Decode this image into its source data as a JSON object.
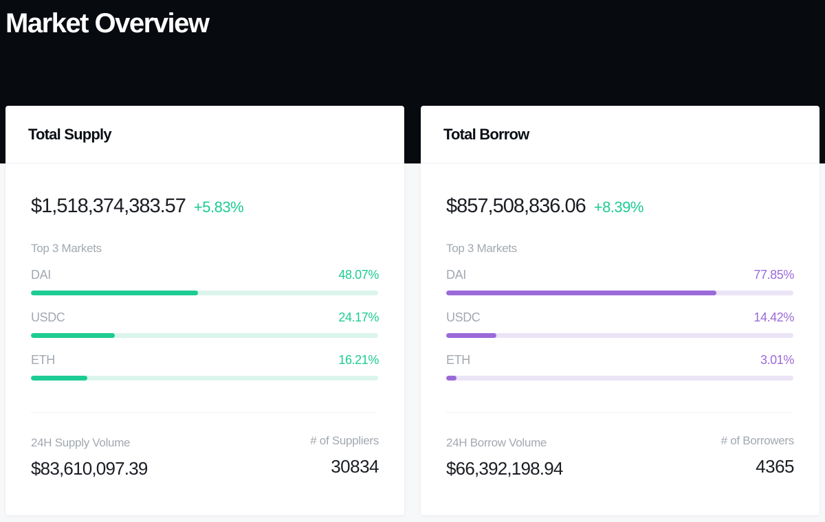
{
  "page": {
    "title": "Market Overview"
  },
  "colors": {
    "supply_accent": "#1ccc93",
    "supply_track": "#dcf5ec",
    "borrow_accent": "#9b6ad9",
    "borrow_track": "#ebe4f6",
    "change_positive": "#1ccc93"
  },
  "supply": {
    "title": "Total Supply",
    "total": "$1,518,374,383.57",
    "change": "+5.83%",
    "top_label": "Top 3 Markets",
    "markets": [
      {
        "name": "DAI",
        "percent_label": "48.07%",
        "percent": 48.07
      },
      {
        "name": "USDC",
        "percent_label": "24.17%",
        "percent": 24.17
      },
      {
        "name": "ETH",
        "percent_label": "16.21%",
        "percent": 16.21
      }
    ],
    "volume_label": "24H Supply Volume",
    "volume": "$83,610,097.39",
    "count_label": "# of Suppliers",
    "count": "30834"
  },
  "borrow": {
    "title": "Total Borrow",
    "total": "$857,508,836.06",
    "change": "+8.39%",
    "top_label": "Top 3 Markets",
    "markets": [
      {
        "name": "DAI",
        "percent_label": "77.85%",
        "percent": 77.85
      },
      {
        "name": "USDC",
        "percent_label": "14.42%",
        "percent": 14.42
      },
      {
        "name": "ETH",
        "percent_label": "3.01%",
        "percent": 3.01
      }
    ],
    "volume_label": "24H Borrow Volume",
    "volume": "$66,392,198.94",
    "count_label": "# of Borrowers",
    "count": "4365"
  }
}
